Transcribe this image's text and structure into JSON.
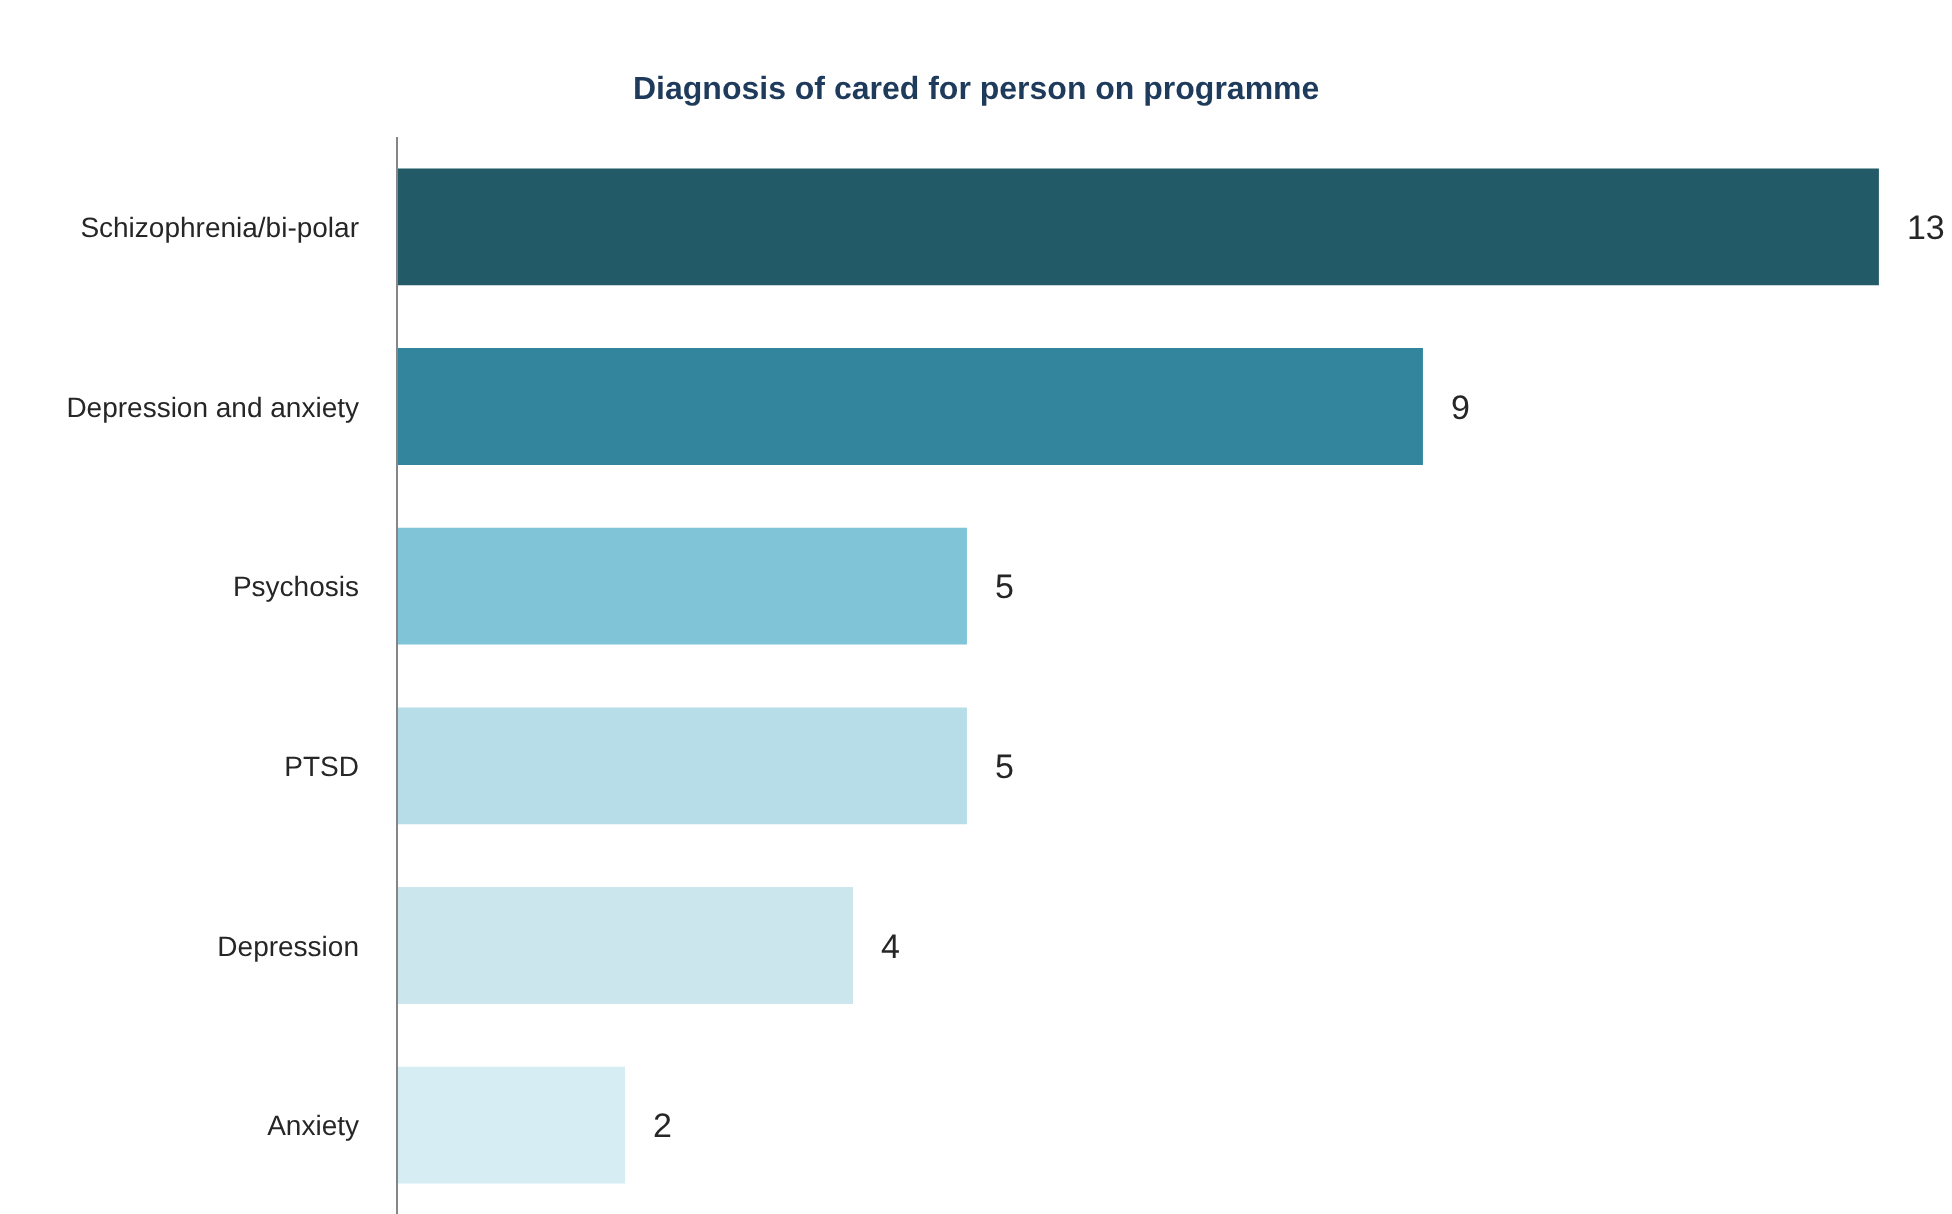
{
  "chart_data": {
    "type": "bar",
    "orientation": "horizontal",
    "title": "Diagnosis of cared for person on programme",
    "categories": [
      "Schizophrenia/bi-polar",
      "Depression and anxiety",
      "Psychosis",
      "PTSD",
      "Depression",
      "Anxiety"
    ],
    "values": [
      13,
      9,
      5,
      5,
      4,
      2
    ],
    "colors": [
      "#235a68",
      "#32859c",
      "#80c4d7",
      "#b7dde8",
      "#cce6ee",
      "#d6edf3"
    ],
    "data_labels": true,
    "tick_labels": "y",
    "grid": false
  }
}
